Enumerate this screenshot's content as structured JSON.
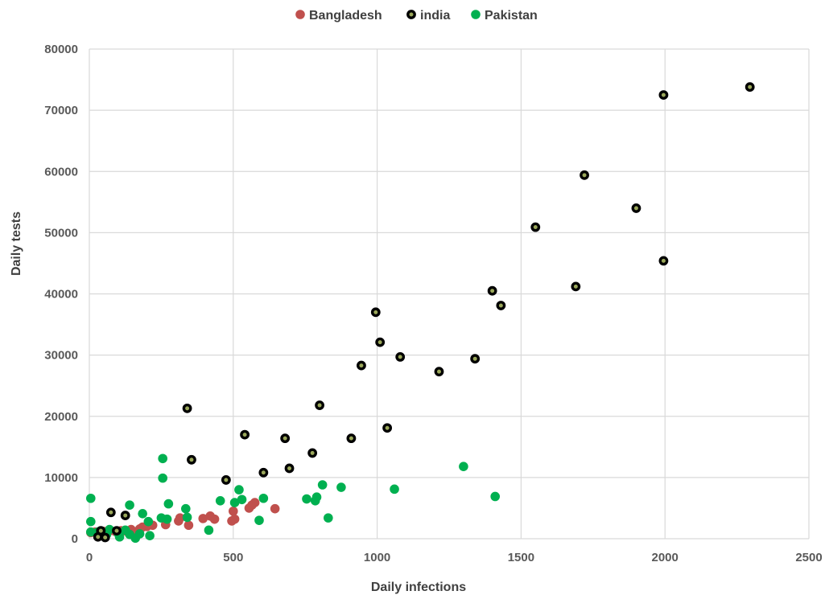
{
  "chart_data": {
    "type": "scatter",
    "xlabel": "Daily infections",
    "ylabel": "Daily tests",
    "xlim": [
      0,
      2500
    ],
    "ylim": [
      0,
      80000
    ],
    "x_ticks": [
      "0",
      "500",
      "1000",
      "1500",
      "2000",
      "2500"
    ],
    "y_ticks": [
      "0",
      "10000",
      "20000",
      "30000",
      "40000",
      "50000",
      "60000",
      "70000",
      "80000"
    ],
    "grid": true,
    "legend_position": "top",
    "series": [
      {
        "name": "Bangladesh",
        "color": "#c0504d",
        "marker": "filled-circle",
        "points": [
          [
            5,
            1000
          ],
          [
            20,
            1100
          ],
          [
            35,
            900
          ],
          [
            50,
            1200
          ],
          [
            70,
            1300
          ],
          [
            90,
            1200
          ],
          [
            110,
            1300
          ],
          [
            130,
            1200
          ],
          [
            145,
            1500
          ],
          [
            160,
            1100
          ],
          [
            175,
            1600
          ],
          [
            185,
            1900
          ],
          [
            200,
            2000
          ],
          [
            220,
            2200
          ],
          [
            265,
            2300
          ],
          [
            310,
            2900
          ],
          [
            315,
            3400
          ],
          [
            345,
            2200
          ],
          [
            395,
            3300
          ],
          [
            420,
            3700
          ],
          [
            435,
            3200
          ],
          [
            495,
            2900
          ],
          [
            500,
            4500
          ],
          [
            505,
            3200
          ],
          [
            555,
            5000
          ],
          [
            565,
            5500
          ],
          [
            575,
            5900
          ],
          [
            645,
            4900
          ]
        ]
      },
      {
        "name": "india",
        "color": "#000000",
        "fill": "#9aa75a",
        "marker": "ring",
        "points": [
          [
            30,
            300
          ],
          [
            40,
            1300
          ],
          [
            55,
            200
          ],
          [
            75,
            4300
          ],
          [
            95,
            1300
          ],
          [
            125,
            3800
          ],
          [
            340,
            21300
          ],
          [
            355,
            12900
          ],
          [
            475,
            9600
          ],
          [
            540,
            17000
          ],
          [
            605,
            10800
          ],
          [
            680,
            16400
          ],
          [
            695,
            11500
          ],
          [
            775,
            14000
          ],
          [
            800,
            21800
          ],
          [
            910,
            16400
          ],
          [
            945,
            28300
          ],
          [
            995,
            37000
          ],
          [
            1010,
            32100
          ],
          [
            1035,
            18100
          ],
          [
            1080,
            29700
          ],
          [
            1215,
            27300
          ],
          [
            1340,
            29400
          ],
          [
            1400,
            40500
          ],
          [
            1430,
            38100
          ],
          [
            1550,
            50900
          ],
          [
            1690,
            41200
          ],
          [
            1720,
            59400
          ],
          [
            1900,
            54000
          ],
          [
            1995,
            45400
          ],
          [
            1995,
            72500
          ],
          [
            2295,
            73800
          ]
        ]
      },
      {
        "name": "Pakistan",
        "color": "#00b050",
        "marker": "filled-circle",
        "points": [
          [
            5,
            6600
          ],
          [
            5,
            2800
          ],
          [
            5,
            1100
          ],
          [
            30,
            1100
          ],
          [
            60,
            700
          ],
          [
            70,
            1500
          ],
          [
            100,
            900
          ],
          [
            105,
            300
          ],
          [
            125,
            1400
          ],
          [
            140,
            700
          ],
          [
            140,
            5500
          ],
          [
            160,
            100
          ],
          [
            175,
            800
          ],
          [
            185,
            4100
          ],
          [
            205,
            2800
          ],
          [
            210,
            500
          ],
          [
            255,
            13100
          ],
          [
            255,
            9900
          ],
          [
            250,
            3400
          ],
          [
            270,
            3200
          ],
          [
            275,
            5700
          ],
          [
            335,
            4900
          ],
          [
            340,
            3500
          ],
          [
            415,
            1400
          ],
          [
            455,
            6200
          ],
          [
            505,
            5900
          ],
          [
            520,
            8000
          ],
          [
            530,
            6400
          ],
          [
            590,
            3000
          ],
          [
            605,
            6600
          ],
          [
            755,
            6500
          ],
          [
            785,
            6200
          ],
          [
            790,
            6800
          ],
          [
            810,
            8800
          ],
          [
            830,
            3400
          ],
          [
            875,
            8400
          ],
          [
            1060,
            8100
          ],
          [
            1300,
            11800
          ],
          [
            1410,
            6900
          ]
        ]
      }
    ]
  }
}
